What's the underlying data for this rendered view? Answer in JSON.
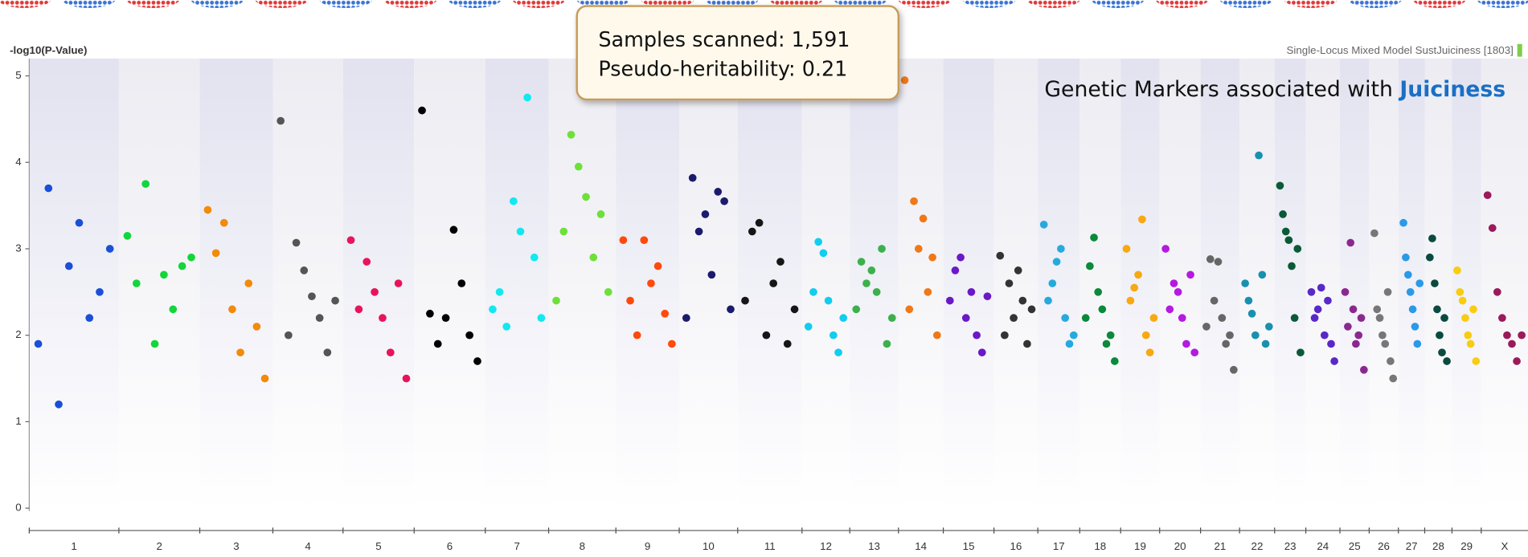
{
  "chart_data": {
    "type": "scatter",
    "y_label": "-log10(P-Value)",
    "subtitle": "Single-Locus Mixed Model SustJuiciness [1803]",
    "info_box": [
      "Samples scanned: 1,591",
      "Pseudo-heritability: 0.21"
    ],
    "headline": {
      "text": "Genetic Markers associated with ",
      "highlight": "Juiciness"
    },
    "ylim": [
      0,
      5.2
    ],
    "yticks": [
      0,
      1,
      2,
      3,
      4,
      5
    ],
    "categories": [
      "1",
      "2",
      "3",
      "4",
      "5",
      "6",
      "7",
      "8",
      "9",
      "10",
      "11",
      "12",
      "13",
      "14",
      "15",
      "16",
      "17",
      "18",
      "19",
      "20",
      "21",
      "22",
      "23",
      "24",
      "25",
      "26",
      "27",
      "28",
      "29",
      "X"
    ],
    "series": [
      {
        "color": "#1a4fd6",
        "values": [
          1.9,
          3.7,
          1.2,
          2.8,
          3.3,
          2.2,
          2.5,
          3.0
        ]
      },
      {
        "color": "#12d63a",
        "values": [
          3.15,
          2.6,
          3.75,
          1.9,
          2.7,
          2.3,
          2.8,
          2.9
        ]
      },
      {
        "color": "#f28a0a",
        "values": [
          3.45,
          2.95,
          3.3,
          2.3,
          1.8,
          2.6,
          2.1,
          1.5
        ]
      },
      {
        "color": "#555555",
        "values": [
          4.48,
          2.0,
          3.07,
          2.75,
          2.45,
          2.2,
          1.8,
          2.4
        ]
      },
      {
        "color": "#e8145a",
        "values": [
          3.1,
          2.3,
          2.85,
          2.5,
          2.2,
          1.8,
          2.6,
          1.5
        ]
      },
      {
        "color": "#000000",
        "values": [
          4.6,
          2.25,
          1.9,
          2.2,
          3.22,
          2.6,
          2.0,
          1.7
        ]
      },
      {
        "color": "#11e8f0",
        "values": [
          2.3,
          2.5,
          2.1,
          3.55,
          3.2,
          4.75,
          2.9,
          2.2
        ]
      },
      {
        "color": "#6ee03a",
        "values": [
          2.4,
          3.2,
          4.32,
          3.95,
          3.6,
          2.9,
          3.4,
          2.5
        ]
      },
      {
        "color": "#ff4a0a",
        "values": [
          3.1,
          2.4,
          2.0,
          3.1,
          2.6,
          2.8,
          2.25,
          1.9
        ]
      },
      {
        "color": "#1b1b6e",
        "values": [
          2.2,
          3.82,
          3.2,
          3.4,
          2.7,
          3.66,
          3.55,
          2.3
        ]
      },
      {
        "color": "#161616",
        "values": [
          2.4,
          3.2,
          3.3,
          2.0,
          2.6,
          2.85,
          1.9,
          2.3
        ]
      },
      {
        "color": "#12cdf0",
        "values": [
          2.1,
          2.5,
          3.08,
          2.95,
          2.4,
          2.0,
          1.8,
          2.2
        ]
      },
      {
        "color": "#3cb04a",
        "values": [
          2.3,
          2.85,
          2.6,
          2.75,
          2.5,
          3.0,
          1.9,
          2.2
        ]
      },
      {
        "color": "#f07818",
        "values": [
          4.95,
          2.3,
          3.55,
          3.0,
          3.35,
          2.5,
          2.9,
          2.0
        ]
      },
      {
        "color": "#6a18c8",
        "values": [
          2.4,
          2.75,
          2.9,
          2.2,
          2.5,
          2.0,
          1.8,
          2.45
        ]
      },
      {
        "color": "#333333",
        "values": [
          2.92,
          2.0,
          2.6,
          2.2,
          2.75,
          2.4,
          1.9,
          2.3
        ]
      },
      {
        "color": "#26aadd",
        "values": [
          3.28,
          2.4,
          2.6,
          2.85,
          3.0,
          2.2,
          1.9,
          2.0
        ]
      },
      {
        "color": "#0a8a3a",
        "values": [
          2.2,
          2.8,
          3.13,
          2.5,
          2.3,
          1.9,
          2.0,
          1.7
        ]
      },
      {
        "color": "#f8a810",
        "values": [
          3.0,
          2.4,
          2.55,
          2.7,
          3.34,
          2.0,
          1.8,
          2.2
        ]
      },
      {
        "color": "#b41ae0",
        "values": [
          3.0,
          2.3,
          2.6,
          2.5,
          2.2,
          1.9,
          2.7,
          1.8
        ]
      },
      {
        "color": "#666666",
        "values": [
          2.1,
          2.88,
          2.4,
          2.85,
          2.2,
          1.9,
          2.0,
          1.6
        ]
      },
      {
        "color": "#1a90b0",
        "values": [
          2.6,
          2.4,
          2.25,
          2.0,
          4.08,
          2.7,
          1.9,
          2.1
        ]
      },
      {
        "color": "#0a5a38",
        "values": [
          3.73,
          3.4,
          3.2,
          3.1,
          2.8,
          2.2,
          3.0,
          1.8
        ]
      },
      {
        "color": "#5a28c8",
        "values": [
          2.5,
          2.2,
          2.3,
          2.55,
          2.0,
          2.4,
          1.9,
          1.7
        ]
      },
      {
        "color": "#8a2890",
        "values": [
          2.5,
          2.1,
          3.07,
          2.3,
          1.9,
          2.0,
          2.2,
          1.6
        ]
      },
      {
        "color": "#777777",
        "values": [
          3.18,
          2.3,
          2.2,
          2.0,
          1.9,
          2.5,
          1.7,
          1.5
        ]
      },
      {
        "color": "#2a9ae8",
        "values": [
          3.3,
          2.9,
          2.7,
          2.5,
          2.3,
          2.1,
          1.9,
          2.6
        ]
      },
      {
        "color": "#0a4a40",
        "values": [
          2.9,
          3.12,
          2.6,
          2.3,
          2.0,
          1.8,
          2.2,
          1.7
        ]
      },
      {
        "color": "#f8cc10",
        "values": [
          2.75,
          2.5,
          2.4,
          2.2,
          2.0,
          1.9,
          2.3,
          1.7
        ]
      },
      {
        "color": "#9a1a5a",
        "values": [
          3.62,
          3.24,
          2.5,
          2.2,
          2.0,
          1.9,
          1.7,
          2.0
        ]
      }
    ]
  }
}
